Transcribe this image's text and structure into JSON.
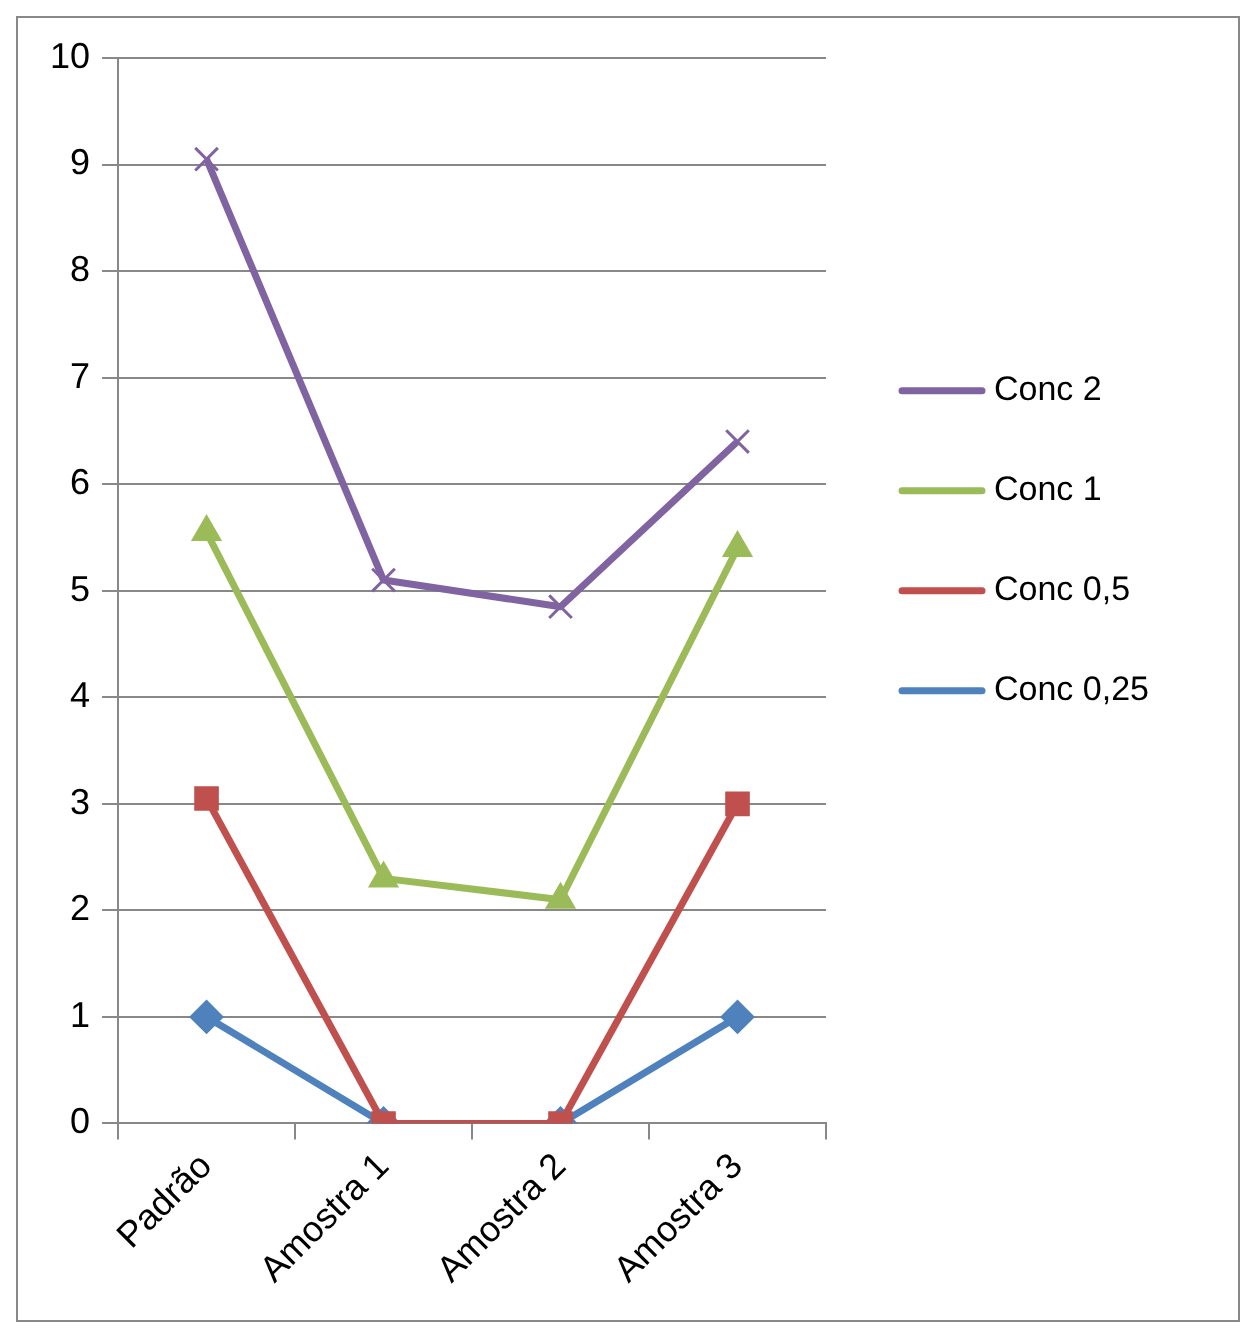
{
  "chart_data": {
    "type": "line",
    "categories": [
      "Padrão",
      "Amostra 1",
      "Amostra 2",
      "Amostra 3"
    ],
    "series": [
      {
        "name": "Conc 2",
        "color": "#8064a2",
        "marker": "cross",
        "values": [
          9.05,
          5.1,
          4.85,
          6.4
        ]
      },
      {
        "name": "Conc 1",
        "color": "#9bbb59",
        "marker": "triangle",
        "values": [
          5.55,
          2.3,
          2.1,
          5.4
        ]
      },
      {
        "name": "Conc 0,5",
        "color": "#c0504d",
        "marker": "square",
        "values": [
          3.05,
          0,
          0,
          3
        ]
      },
      {
        "name": "Conc 0,25",
        "color": "#4f81bd",
        "marker": "diamond",
        "values": [
          1,
          0,
          0,
          1
        ]
      }
    ],
    "ylim": [
      0,
      10
    ],
    "yticks": [
      0,
      1,
      2,
      3,
      4,
      5,
      6,
      7,
      8,
      9,
      10
    ],
    "grid": "y",
    "legend": "right",
    "line_style": "solid"
  }
}
